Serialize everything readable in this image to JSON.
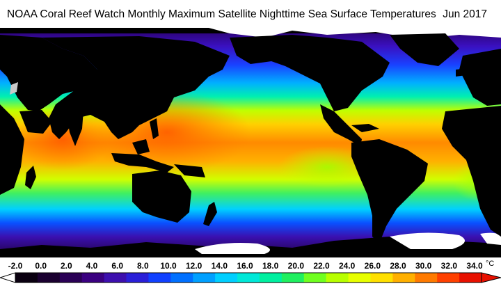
{
  "header": {
    "title": "NOAA Coral Reef Watch Monthly Maximum Satellite Nighttime Sea Surface Temperatures",
    "date": "Jun 2017"
  },
  "colorbar": {
    "unit": "°C",
    "tick_labels": [
      "-2.0",
      "0.0",
      "2.0",
      "4.0",
      "6.0",
      "8.0",
      "10.0",
      "12.0",
      "14.0",
      "16.0",
      "18.0",
      "20.0",
      "22.0",
      "24.0",
      "26.0",
      "28.0",
      "30.0",
      "32.0",
      "34.0"
    ],
    "range": [
      -2,
      34
    ],
    "colors": [
      "#0a0010",
      "#1a0030",
      "#2a0055",
      "#3a0080",
      "#3d0fae",
      "#2a1fd8",
      "#1040ff",
      "#0070ff",
      "#00a0ff",
      "#00cfff",
      "#00e8d8",
      "#00f0a0",
      "#20f060",
      "#70ff20",
      "#b8ff00",
      "#e8ff00",
      "#ffe000",
      "#ffb000",
      "#ff7a00",
      "#ff4000",
      "#e81000"
    ]
  },
  "map": {
    "land_color": "#000000",
    "ice_color": "#ffffff",
    "no_data_color": "#c8c8c8"
  }
}
